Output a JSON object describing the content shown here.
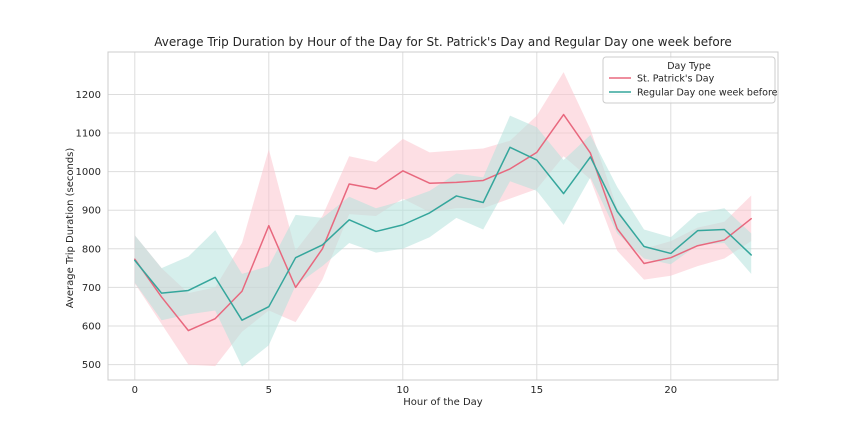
{
  "chart_data": {
    "type": "line",
    "title": "Average Trip Duration by Hour of the Day for St. Patrick's Day and Regular Day one week before",
    "xlabel": "Hour of the Day",
    "ylabel": "Average Trip Duration (seconds)",
    "xlim": [
      -1,
      24
    ],
    "ylim": [
      460,
      1310
    ],
    "xticks": [
      0,
      5,
      10,
      15,
      20
    ],
    "yticks": [
      500,
      600,
      700,
      800,
      900,
      1000,
      1100,
      1200
    ],
    "grid": true,
    "legend": {
      "title": "Day Type",
      "position": "top-right"
    },
    "x": [
      0,
      1,
      2,
      3,
      4,
      5,
      6,
      7,
      8,
      9,
      10,
      11,
      12,
      13,
      14,
      15,
      16,
      17,
      18,
      19,
      20,
      21,
      22,
      23
    ],
    "series": [
      {
        "name": "St. Patrick's Day",
        "color": "#e8687e",
        "band_color": "#fcc4ce",
        "values": [
          773,
          675,
          588,
          619,
          690,
          860,
          700,
          800,
          968,
          955,
          1002,
          970,
          972,
          977,
          1007,
          1050,
          1148,
          1048,
          852,
          762,
          777,
          808,
          823,
          878
        ],
        "lower": [
          710,
          605,
          500,
          496,
          585,
          640,
          610,
          720,
          890,
          885,
          930,
          895,
          905,
          905,
          930,
          955,
          1040,
          980,
          795,
          720,
          730,
          755,
          775,
          820
        ],
        "upper": [
          835,
          750,
          685,
          700,
          815,
          1058,
          795,
          885,
          1040,
          1025,
          1085,
          1050,
          1055,
          1060,
          1080,
          1145,
          1258,
          1110,
          905,
          800,
          820,
          855,
          870,
          938
        ]
      },
      {
        "name": "Regular Day one week before",
        "color": "#35a69c",
        "band_color": "#b4e2dc",
        "values": [
          770,
          685,
          692,
          726,
          615,
          650,
          777,
          810,
          875,
          845,
          862,
          893,
          937,
          920,
          1063,
          1030,
          943,
          1038,
          897,
          806,
          788,
          847,
          850,
          784
        ],
        "lower": [
          712,
          615,
          630,
          640,
          495,
          550,
          705,
          755,
          815,
          790,
          800,
          830,
          880,
          850,
          975,
          950,
          862,
          985,
          840,
          775,
          760,
          810,
          815,
          735
        ],
        "upper": [
          835,
          750,
          780,
          848,
          735,
          755,
          888,
          880,
          935,
          905,
          925,
          950,
          995,
          985,
          1145,
          1115,
          1030,
          1095,
          960,
          850,
          830,
          892,
          905,
          840
        ]
      }
    ]
  }
}
